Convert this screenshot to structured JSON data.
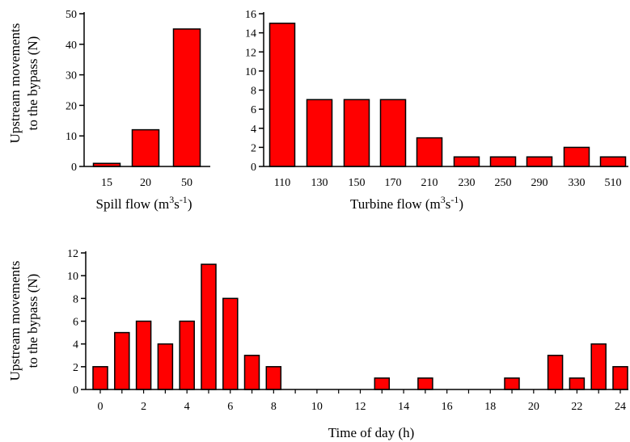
{
  "y_axis_label": {
    "line1": "Upstream movements",
    "line2": "to the bypass (N)"
  },
  "chart_data": [
    {
      "type": "bar",
      "categories": [
        "15",
        "20",
        "50"
      ],
      "values": [
        1,
        12,
        45
      ],
      "xlabel": "Spill flow (m³s⁻¹)",
      "xlabel_parts": {
        "main": "Spill flow (m",
        "sup1": "3",
        "mid": "s",
        "sup2": "-1",
        "end": ")"
      },
      "ylabel": "Upstream movements to the bypass (N)",
      "yticks": [
        "0",
        "10",
        "20",
        "30",
        "40",
        "50"
      ],
      "ylim": [
        0,
        50
      ],
      "bar_color": "#ff0000",
      "grid": false
    },
    {
      "type": "bar",
      "categories": [
        "110",
        "130",
        "150",
        "170",
        "210",
        "230",
        "250",
        "290",
        "330",
        "510"
      ],
      "values": [
        15,
        7,
        7,
        7,
        3,
        1,
        1,
        1,
        2,
        1
      ],
      "xlabel": "Turbine flow (m³s⁻¹)",
      "xlabel_parts": {
        "main": "Turbine flow (m",
        "sup1": "3",
        "mid": "s",
        "sup2": "-1",
        "end": ")"
      },
      "yticks": [
        "0",
        "2",
        "4",
        "6",
        "8",
        "10",
        "12",
        "14",
        "16"
      ],
      "ylim": [
        0,
        16
      ],
      "bar_color": "#ff0000",
      "grid": false
    },
    {
      "type": "bar",
      "x": [
        0,
        1,
        2,
        3,
        4,
        5,
        6,
        7,
        8,
        9,
        10,
        11,
        12,
        13,
        14,
        15,
        16,
        17,
        18,
        19,
        20,
        21,
        22,
        23,
        24
      ],
      "values": [
        2,
        5,
        6,
        4,
        6,
        11,
        8,
        3,
        2,
        0,
        0,
        0,
        0,
        1,
        0,
        1,
        0,
        0,
        0,
        1,
        0,
        3,
        1,
        4,
        2
      ],
      "xticks": [
        "0",
        "2",
        "4",
        "6",
        "8",
        "10",
        "12",
        "14",
        "16",
        "18",
        "20",
        "22",
        "24"
      ],
      "xlabel": "Time of day (h)",
      "ylabel": "Upstream movements to the bypass (N)",
      "yticks": [
        "0",
        "2",
        "4",
        "6",
        "8",
        "10",
        "12"
      ],
      "ylim": [
        0,
        12
      ],
      "bar_color": "#ff0000",
      "grid": false
    }
  ]
}
